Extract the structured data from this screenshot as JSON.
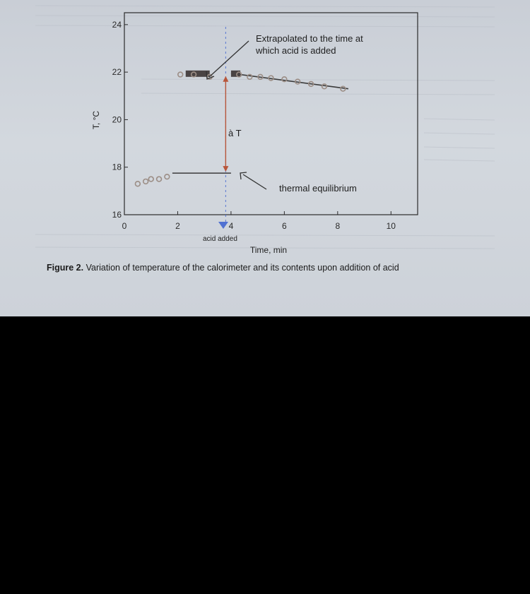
{
  "caption": {
    "label": "Figure 2.",
    "text": "Variation of temperature of the calorimeter and its contents upon addition of acid"
  },
  "annotations": {
    "extrapolated_line1": "Extrapolated to the time at",
    "extrapolated_line2": "which acid is added",
    "delta_t": "à T",
    "equilibrium": "thermal equilibrium",
    "acid_added": "acid added"
  },
  "colors": {
    "points": "#9c8e86",
    "lines": "#3b3b3b",
    "delta_arrow": "#b8563a",
    "acid_marker": "#3a5fd0"
  },
  "chart_data": {
    "type": "scatter",
    "xlabel": "Time, min",
    "ylabel": "T, °C",
    "xlim": [
      0,
      11
    ],
    "ylim": [
      16,
      24.5
    ],
    "xticks": [
      0,
      2,
      4,
      6,
      8,
      10
    ],
    "yticks": [
      16,
      18,
      20,
      22,
      24
    ],
    "acid_added_time": 3.8,
    "grid": false,
    "series": [
      {
        "points": [
          {
            "x": 0.5,
            "y": 17.3
          },
          {
            "x": 0.8,
            "y": 17.4
          },
          {
            "x": 1.0,
            "y": 17.5
          },
          {
            "x": 1.3,
            "y": 17.5
          },
          {
            "x": 1.6,
            "y": 17.6
          }
        ]
      },
      {
        "points": [
          {
            "x": 2.1,
            "y": 21.9
          },
          {
            "x": 2.6,
            "y": 21.9
          },
          {
            "x": 3.2,
            "y": 21.8
          },
          {
            "x": 4.3,
            "y": 21.9
          },
          {
            "x": 4.7,
            "y": 21.8
          },
          {
            "x": 5.1,
            "y": 21.8
          },
          {
            "x": 5.5,
            "y": 21.75
          },
          {
            "x": 6.0,
            "y": 21.7
          },
          {
            "x": 6.5,
            "y": 21.6
          },
          {
            "x": 7.0,
            "y": 21.5
          },
          {
            "x": 7.5,
            "y": 21.4
          },
          {
            "x": 8.2,
            "y": 21.3
          }
        ]
      }
    ],
    "fit_lines": [
      {
        "x": [
          1.8,
          4.0
        ],
        "y": [
          17.75,
          17.75
        ]
      },
      {
        "x": [
          4.0,
          8.4
        ],
        "y": [
          21.95,
          21.3
        ]
      }
    ],
    "extrapolated_segments": [
      {
        "x": [
          2.3,
          3.2
        ],
        "y": 21.95
      },
      {
        "x": [
          4.0,
          4.35
        ],
        "y": 21.95
      }
    ]
  }
}
